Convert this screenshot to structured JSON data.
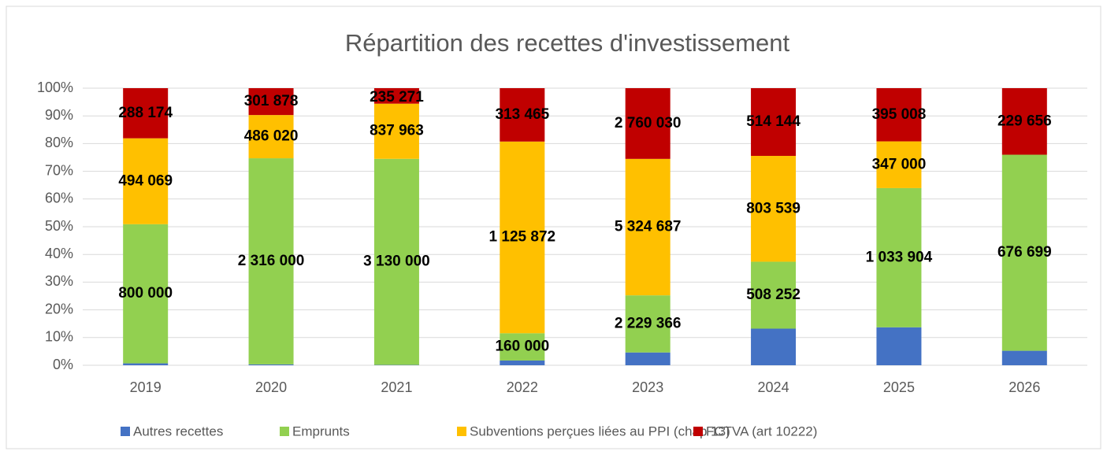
{
  "chart_data": {
    "type": "stacked_bar_100",
    "title": "Répartition des recettes d'investissement",
    "categories": [
      "2019",
      "2020",
      "2021",
      "2022",
      "2023",
      "2024",
      "2025",
      "2026"
    ],
    "series": [
      {
        "name": "Autres recettes",
        "color": "#4472c4",
        "values": [
          11000,
          10000,
          5000,
          28000,
          500000,
          278000,
          282000,
          50000
        ]
      },
      {
        "name": "Emprunts",
        "color": "#92d050",
        "values": [
          800000,
          2316000,
          3130000,
          160000,
          2229366,
          508252,
          1033904,
          676699
        ],
        "value_labels": [
          "800 000",
          "2 316 000",
          "3 130 000",
          "160 000",
          "2 229 366",
          "508 252",
          "1 033 904",
          "676 699"
        ]
      },
      {
        "name": "Subventions perçues liées au PPI  (chap 13)",
        "color": "#ffc000",
        "values": [
          494069,
          486020,
          837963,
          1125872,
          5324687,
          803539,
          347000,
          null
        ],
        "value_labels": [
          "494 069",
          "486 020",
          "837 963",
          "1 125 872",
          "5 324 687",
          "803 539",
          "347 000",
          null
        ]
      },
      {
        "name": "FCTVA (art 10222)",
        "color": "#c00000",
        "values": [
          288174,
          301878,
          235271,
          313465,
          2760030,
          514144,
          395008,
          229656
        ],
        "value_labels": [
          "288 174",
          "301 878",
          "235 271",
          "313 465",
          "2 760 030",
          "514 144",
          "395 008",
          "229 656"
        ]
      }
    ],
    "ylim": [
      0,
      100
    ],
    "yticks": [
      {
        "value": 0,
        "label": "0%"
      },
      {
        "value": 10,
        "label": "10%"
      },
      {
        "value": 20,
        "label": "20%"
      },
      {
        "value": 30,
        "label": "30%"
      },
      {
        "value": 40,
        "label": "40%"
      },
      {
        "value": 50,
        "label": "50%"
      },
      {
        "value": 60,
        "label": "60%"
      },
      {
        "value": 70,
        "label": "70%"
      },
      {
        "value": 80,
        "label": "80%"
      },
      {
        "value": 90,
        "label": "90%"
      },
      {
        "value": 100,
        "label": "100%"
      }
    ],
    "grid": true,
    "legend": "bottom"
  }
}
